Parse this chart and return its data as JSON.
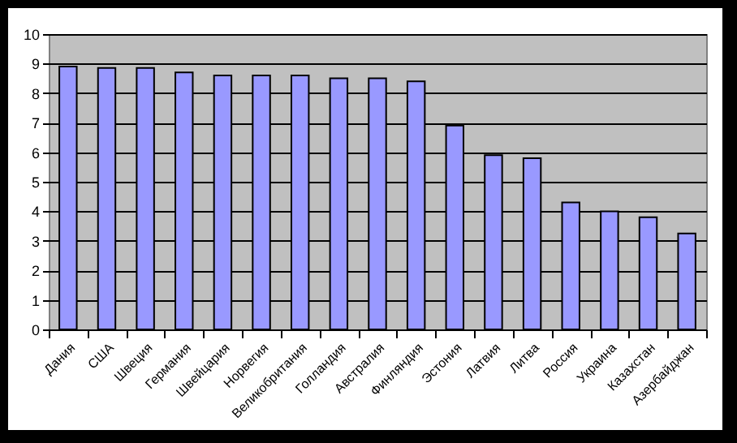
{
  "chart_data": {
    "type": "bar",
    "categories": [
      "Дания",
      "США",
      "Швеция",
      "Германия",
      "Швейцария",
      "Норвегия",
      "Великобритания",
      "Голландия",
      "Австралия",
      "Финляндия",
      "Эстония",
      "Латвия",
      "Литва",
      "Россия",
      "Украина",
      "Казахстан",
      "Азербайджан"
    ],
    "values": [
      8.9,
      8.85,
      8.85,
      8.7,
      8.6,
      8.6,
      8.6,
      8.5,
      8.5,
      8.4,
      6.9,
      5.9,
      5.8,
      4.3,
      4.0,
      3.8,
      3.25
    ],
    "color": "#9999ff",
    "ylim": [
      0,
      10
    ],
    "yticks": [
      0,
      1,
      2,
      3,
      4,
      5,
      6,
      7,
      8,
      9,
      10
    ],
    "grid": "y"
  }
}
